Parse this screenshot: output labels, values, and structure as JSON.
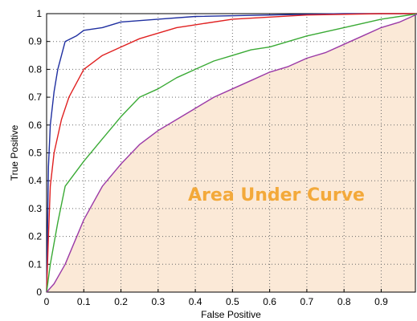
{
  "chart_data": {
    "type": "line",
    "xlabel": "False Positive",
    "ylabel": "True Positive",
    "xlim": [
      0,
      1
    ],
    "ylim": [
      0,
      1
    ],
    "x_ticks": [
      "0",
      "0.1",
      "0.2",
      "0.3",
      "0.4",
      "0.5",
      "0.6",
      "0.7",
      "0.8",
      "0.9"
    ],
    "y_ticks": [
      "0",
      "0.1",
      "0.2",
      "0.3",
      "0.4",
      "0.5",
      "0.6",
      "0.7",
      "0.8",
      "0.9",
      "1"
    ],
    "grid": true,
    "annotation": "Area Under Curve",
    "area_fill_color": "#fbe9d7",
    "annotation_color": "#f3a93a",
    "series": [
      {
        "color": "#1f2fa0",
        "points": [
          [
            0,
            0
          ],
          [
            0.005,
            0.45
          ],
          [
            0.01,
            0.6
          ],
          [
            0.02,
            0.72
          ],
          [
            0.03,
            0.8
          ],
          [
            0.04,
            0.85
          ],
          [
            0.05,
            0.9
          ],
          [
            0.08,
            0.92
          ],
          [
            0.1,
            0.94
          ],
          [
            0.15,
            0.95
          ],
          [
            0.2,
            0.97
          ],
          [
            0.3,
            0.98
          ],
          [
            0.4,
            0.99
          ],
          [
            0.6,
            0.995
          ],
          [
            0.8,
            1.0
          ],
          [
            1.0,
            1.0
          ]
        ]
      },
      {
        "color": "#e02020",
        "points": [
          [
            0,
            0
          ],
          [
            0.005,
            0.2
          ],
          [
            0.01,
            0.38
          ],
          [
            0.02,
            0.5
          ],
          [
            0.04,
            0.62
          ],
          [
            0.06,
            0.7
          ],
          [
            0.08,
            0.75
          ],
          [
            0.1,
            0.8
          ],
          [
            0.15,
            0.85
          ],
          [
            0.2,
            0.88
          ],
          [
            0.25,
            0.91
          ],
          [
            0.3,
            0.93
          ],
          [
            0.35,
            0.95
          ],
          [
            0.4,
            0.96
          ],
          [
            0.5,
            0.98
          ],
          [
            0.7,
            0.995
          ],
          [
            0.9,
            1.0
          ],
          [
            1.0,
            1.0
          ]
        ]
      },
      {
        "color": "#3aaa35",
        "points": [
          [
            0,
            0
          ],
          [
            0.01,
            0.1
          ],
          [
            0.03,
            0.25
          ],
          [
            0.05,
            0.38
          ],
          [
            0.1,
            0.47
          ],
          [
            0.15,
            0.55
          ],
          [
            0.2,
            0.63
          ],
          [
            0.25,
            0.7
          ],
          [
            0.3,
            0.73
          ],
          [
            0.35,
            0.77
          ],
          [
            0.4,
            0.8
          ],
          [
            0.45,
            0.83
          ],
          [
            0.5,
            0.85
          ],
          [
            0.55,
            0.87
          ],
          [
            0.6,
            0.88
          ],
          [
            0.65,
            0.9
          ],
          [
            0.7,
            0.92
          ],
          [
            0.8,
            0.95
          ],
          [
            0.9,
            0.98
          ],
          [
            1.0,
            1.0
          ]
        ]
      },
      {
        "color": "#9b3aa7",
        "points": [
          [
            0,
            0
          ],
          [
            0.02,
            0.03
          ],
          [
            0.05,
            0.1
          ],
          [
            0.1,
            0.26
          ],
          [
            0.15,
            0.38
          ],
          [
            0.2,
            0.46
          ],
          [
            0.25,
            0.53
          ],
          [
            0.3,
            0.58
          ],
          [
            0.35,
            0.62
          ],
          [
            0.4,
            0.66
          ],
          [
            0.45,
            0.7
          ],
          [
            0.5,
            0.73
          ],
          [
            0.55,
            0.76
          ],
          [
            0.6,
            0.79
          ],
          [
            0.65,
            0.81
          ],
          [
            0.7,
            0.84
          ],
          [
            0.75,
            0.86
          ],
          [
            0.8,
            0.89
          ],
          [
            0.85,
            0.92
          ],
          [
            0.9,
            0.95
          ],
          [
            0.95,
            0.97
          ],
          [
            1.0,
            1.0
          ]
        ]
      }
    ]
  }
}
